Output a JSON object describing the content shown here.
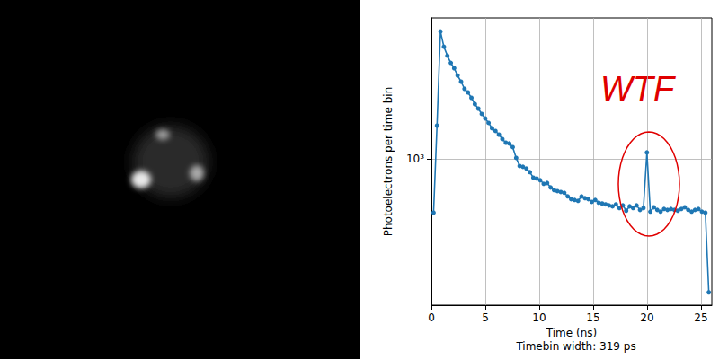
{
  "chart_data": {
    "type": "line",
    "xlabel": "Time (ns)",
    "ylabel": "Photoelectrons per time bin",
    "subtitle": "Timebin width: 319 ps",
    "log": "y",
    "grid": true,
    "xlim": [
      0,
      26
    ],
    "xticks": [
      0,
      5,
      10,
      15,
      20,
      25
    ],
    "ylim": [
      195,
      4820
    ],
    "yticks": [
      {
        "value": 1000,
        "label": "10³"
      }
    ],
    "annotations": [
      {
        "text": "WTF",
        "color": "#e00000"
      }
    ],
    "series": [
      {
        "color": "#1f77b4",
        "marker": "circle",
        "line_style": "solid",
        "x": [
          0.2,
          0.52,
          0.84,
          1.16,
          1.48,
          1.8,
          2.11,
          2.43,
          2.75,
          3.07,
          3.39,
          3.71,
          4.03,
          4.35,
          4.67,
          4.99,
          5.3,
          5.62,
          5.94,
          6.26,
          6.58,
          6.9,
          7.22,
          7.54,
          7.86,
          8.18,
          8.49,
          8.81,
          9.13,
          9.45,
          9.77,
          10.09,
          10.41,
          10.73,
          11.05,
          11.37,
          11.68,
          12.0,
          12.32,
          12.64,
          12.96,
          13.28,
          13.6,
          13.92,
          14.24,
          14.56,
          14.87,
          15.19,
          15.51,
          15.83,
          16.15,
          16.47,
          16.79,
          17.11,
          17.43,
          17.75,
          18.06,
          18.38,
          18.7,
          19.02,
          19.34,
          19.66,
          19.98,
          20.3,
          20.62,
          20.94,
          21.25,
          21.57,
          21.89,
          22.21,
          22.53,
          22.85,
          23.17,
          23.49,
          23.81,
          24.13,
          24.44,
          24.76,
          25.08,
          25.4,
          25.72
        ],
        "values": [
          548,
          1448,
          4143,
          3494,
          3162,
          2918,
          2749,
          2536,
          2366,
          2183,
          2097,
          1975,
          1842,
          1752,
          1650,
          1570,
          1493,
          1406,
          1364,
          1310,
          1246,
          1197,
          1186,
          1139,
          1010,
          923,
          914,
          896,
          861,
          810,
          802,
          787,
          756,
          763,
          726,
          705,
          697,
          690,
          684,
          657,
          637,
          631,
          625,
          657,
          644,
          637,
          618,
          631,
          612,
          607,
          601,
          594,
          588,
          601,
          577,
          594,
          560,
          588,
          577,
          594,
          565,
          577,
          1073,
          554,
          582,
          565,
          554,
          571,
          565,
          571,
          565,
          560,
          571,
          582,
          565,
          554,
          565,
          571,
          554,
          548,
          225
        ]
      }
    ]
  }
}
